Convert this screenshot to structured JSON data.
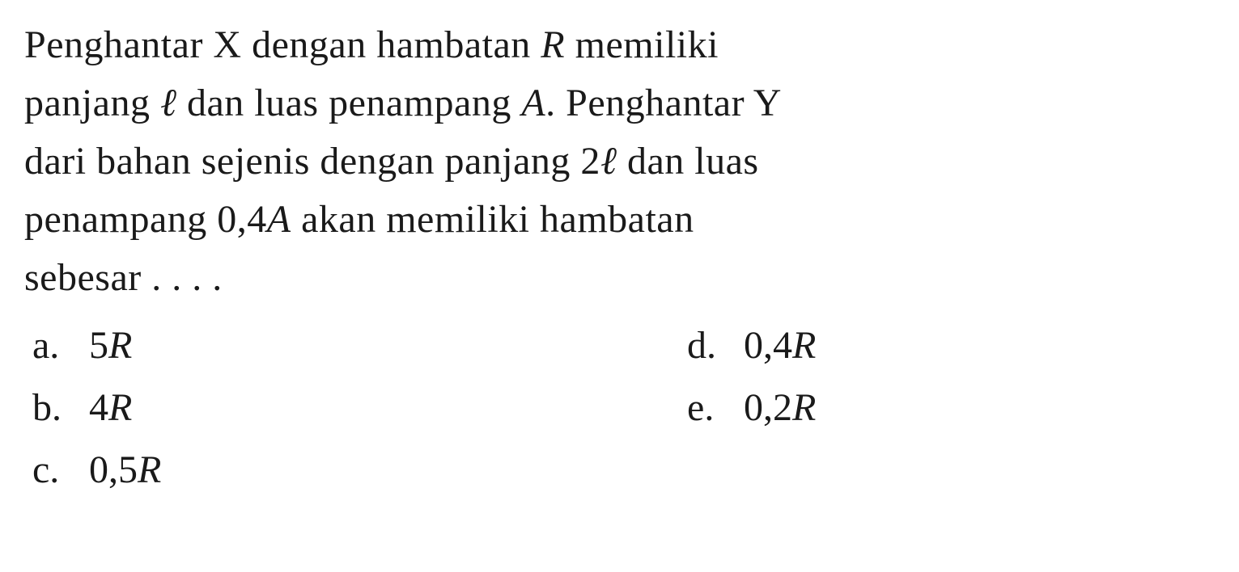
{
  "question": {
    "line1_part1": "Penghantar X dengan hambatan ",
    "line1_var1": "R",
    "line1_part2": " memiliki",
    "line2_part1": "panjang ",
    "line2_var1": "ℓ",
    "line2_part2": " dan luas penampang ",
    "line2_var2": "A",
    "line2_part3": ". Penghantar Y",
    "line3_part1": "dari bahan sejenis dengan panjang 2",
    "line3_var1": "ℓ",
    "line3_part2": " dan luas",
    "line4_part1": "penampang 0,4",
    "line4_var1": "A",
    "line4_part2": " akan memiliki hambatan",
    "line5": "sebesar . . . ."
  },
  "options": {
    "a": {
      "label": "a.",
      "value_num": "5",
      "value_var": "R"
    },
    "b": {
      "label": "b.",
      "value_num": "4",
      "value_var": "R"
    },
    "c": {
      "label": "c.",
      "value_num": "0,5",
      "value_var": "R"
    },
    "d": {
      "label": "d.",
      "value_num": "0,4",
      "value_var": "R"
    },
    "e": {
      "label": "e.",
      "value_num": "0,2",
      "value_var": "R"
    }
  },
  "styling": {
    "font_family": "Georgia, Times New Roman, serif",
    "font_size_pt": 36,
    "text_color": "#1a1a1a",
    "background_color": "#ffffff",
    "line_height": 1.5,
    "variable_style": "italic"
  }
}
